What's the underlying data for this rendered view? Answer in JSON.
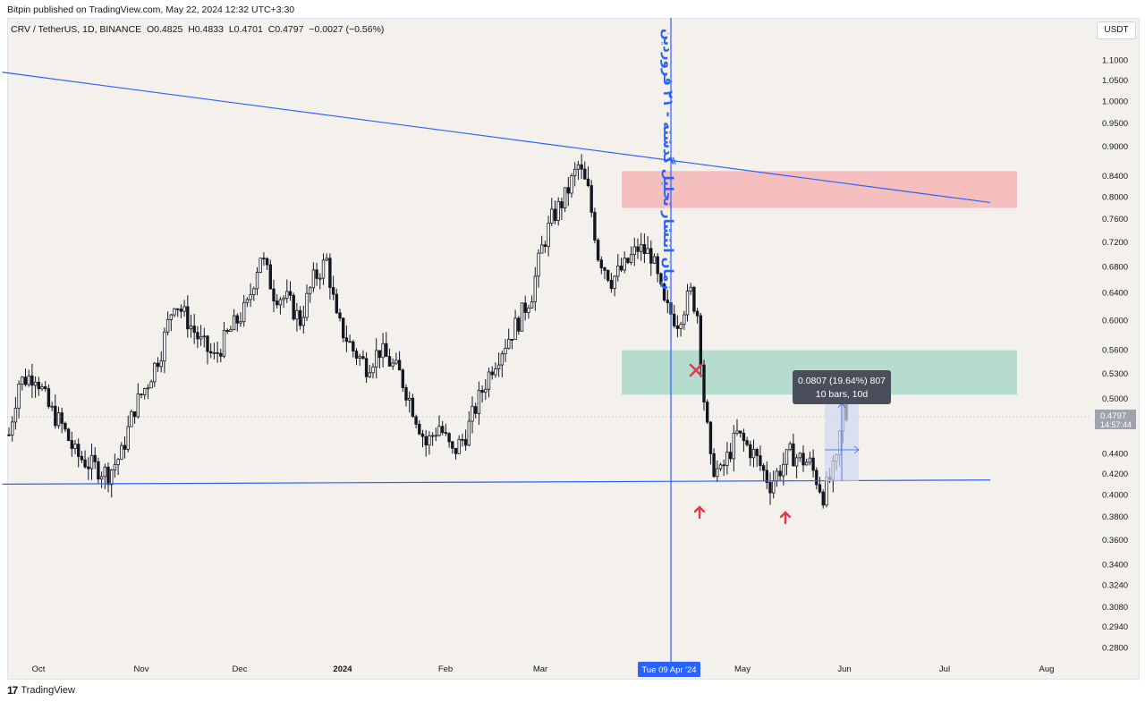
{
  "header": {
    "published": "Bitpin published on TradingView.com, May 22, 2024 12:32 UTC+3:30"
  },
  "symbol": {
    "name": "CRV / TetherUS, 1D, BINANCE",
    "open": "O0.4825",
    "high": "H0.4833",
    "low": "L0.4701",
    "close": "C0.4797",
    "change": "−0.0027 (−0.56%)"
  },
  "unit": "USDT",
  "footer": {
    "brand": "TradingView",
    "logo": "17"
  },
  "colors": {
    "background": "#f4f1ed",
    "trendline": "#2962ff",
    "candle": "#131722",
    "red_zone": "#f4b6b6",
    "green_zone": "#a9d8c9",
    "arrow": "#e53946",
    "measure": "#cfd8ef"
  },
  "chart_data": {
    "type": "candlestick",
    "title": "",
    "x_axis": {
      "labels": [
        "Oct",
        "Nov",
        "Dec",
        "2024",
        "Feb",
        "Mar",
        "May",
        "Jun",
        "Jul",
        "Aug"
      ]
    },
    "y_axis": {
      "scale": "log",
      "range": [
        0.27,
        1.16
      ],
      "tick_labels": [
        "1.1000",
        "1.0500",
        "1.0000",
        "0.9500",
        "0.9000",
        "0.8400",
        "0.8000",
        "0.7600",
        "0.7200",
        "0.6800",
        "0.6400",
        "0.6000",
        "0.5600",
        "0.5300",
        "0.5000",
        "0.4400",
        "0.4200",
        "0.4000",
        "0.3800",
        "0.3600",
        "0.3400",
        "0.3240",
        "0.3080",
        "0.2940",
        "0.2800"
      ],
      "tick_values": [
        1.1,
        1.05,
        1.0,
        0.95,
        0.9,
        0.84,
        0.8,
        0.76,
        0.72,
        0.68,
        0.64,
        0.6,
        0.56,
        0.53,
        0.5,
        0.44,
        0.42,
        0.4,
        0.38,
        0.36,
        0.34,
        0.324,
        0.308,
        0.294,
        0.28
      ]
    },
    "date_range": [
      "2024-09-20",
      "2024-08-10"
    ],
    "price_path": [
      [
        0,
        0.46
      ],
      [
        3,
        0.52
      ],
      [
        8,
        0.53
      ],
      [
        12,
        0.49
      ],
      [
        16,
        0.47
      ],
      [
        20,
        0.44
      ],
      [
        24,
        0.43
      ],
      [
        30,
        0.42
      ],
      [
        34,
        0.44
      ],
      [
        38,
        0.49
      ],
      [
        42,
        0.52
      ],
      [
        46,
        0.56
      ],
      [
        50,
        0.63
      ],
      [
        54,
        0.6
      ],
      [
        58,
        0.57
      ],
      [
        62,
        0.55
      ],
      [
        66,
        0.58
      ],
      [
        72,
        0.62
      ],
      [
        76,
        0.7
      ],
      [
        80,
        0.64
      ],
      [
        84,
        0.63
      ],
      [
        88,
        0.6
      ],
      [
        92,
        0.66
      ],
      [
        96,
        0.69
      ],
      [
        99,
        0.6
      ],
      [
        104,
        0.56
      ],
      [
        108,
        0.54
      ],
      [
        112,
        0.56
      ],
      [
        118,
        0.53
      ],
      [
        122,
        0.49
      ],
      [
        126,
        0.45
      ],
      [
        130,
        0.47
      ],
      [
        134,
        0.44
      ],
      [
        138,
        0.46
      ],
      [
        142,
        0.5
      ],
      [
        146,
        0.54
      ],
      [
        150,
        0.57
      ],
      [
        154,
        0.6
      ],
      [
        158,
        0.64
      ],
      [
        161,
        0.71
      ],
      [
        164,
        0.76
      ],
      [
        168,
        0.8
      ],
      [
        172,
        0.86
      ],
      [
        175,
        0.81
      ],
      [
        178,
        0.7
      ],
      [
        182,
        0.66
      ],
      [
        186,
        0.68
      ],
      [
        190,
        0.71
      ],
      [
        194,
        0.7
      ],
      [
        198,
        0.62
      ],
      [
        202,
        0.6
      ],
      [
        206,
        0.64
      ],
      [
        208,
        0.61
      ],
      [
        210,
        0.5
      ],
      [
        212,
        0.43
      ],
      [
        215,
        0.42
      ],
      [
        220,
        0.46
      ],
      [
        225,
        0.44
      ],
      [
        230,
        0.41
      ],
      [
        236,
        0.44
      ],
      [
        242,
        0.43
      ],
      [
        246,
        0.4
      ],
      [
        250,
        0.43
      ],
      [
        252,
        0.49
      ],
      [
        253,
        0.48
      ]
    ],
    "annotations": {
      "vertical_line_label": "Tue 09 Apr '24",
      "vertical_text": "زمان انتشار تحلیل گذشته - ۲۱ فروردین",
      "price_label": "0.4797",
      "countdown": "14:57:44",
      "measure_line1": "0.0807 (19.64%) 807",
      "measure_line2": "10 bars, 10d",
      "upper_trendline": {
        "from": [
          -2,
          1.07
        ],
        "to": [
          300,
          0.79
        ]
      },
      "lower_trendline": {
        "from": [
          -2,
          0.41
        ],
        "to": [
          300,
          0.414
        ]
      },
      "red_zone": {
        "price_top": 0.85,
        "price_bottom": 0.78
      },
      "green_zone": {
        "price_top": 0.56,
        "price_bottom": 0.505
      },
      "measure_box": {
        "price_top": 0.495,
        "price_bottom": 0.413
      }
    }
  }
}
